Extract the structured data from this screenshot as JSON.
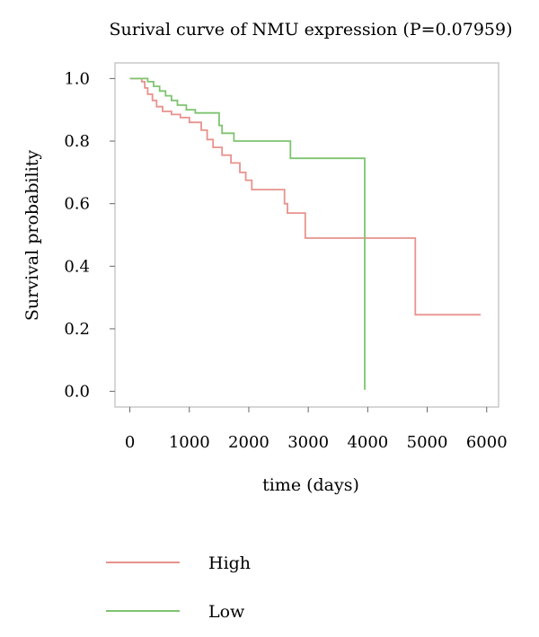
{
  "chart_data": {
    "type": "line",
    "title": "Surival curve of NMU expression (P=0.07959)",
    "xlabel": "time (days)",
    "ylabel": "Survival probability",
    "xlim": [
      -250,
      6200
    ],
    "ylim": [
      -0.05,
      1.05
    ],
    "x_ticks": [
      0,
      1000,
      2000,
      3000,
      4000,
      5000,
      6000
    ],
    "y_ticks": [
      0.0,
      0.2,
      0.4,
      0.6,
      0.8,
      1.0
    ],
    "x_tick_labels": [
      "0",
      "1000",
      "2000",
      "3000",
      "4000",
      "5000",
      "6000"
    ],
    "y_tick_labels": [
      "0.0",
      "0.2",
      "0.4",
      "0.6",
      "0.8",
      "1.0"
    ],
    "step": true,
    "legend_position": "bottom-left",
    "series": [
      {
        "name": "High",
        "color": "#e8928d",
        "points": [
          [
            0,
            1.0
          ],
          [
            200,
            0.99
          ],
          [
            250,
            0.97
          ],
          [
            300,
            0.95
          ],
          [
            380,
            0.93
          ],
          [
            450,
            0.91
          ],
          [
            550,
            0.895
          ],
          [
            700,
            0.885
          ],
          [
            850,
            0.875
          ],
          [
            1000,
            0.86
          ],
          [
            1200,
            0.835
          ],
          [
            1300,
            0.805
          ],
          [
            1400,
            0.78
          ],
          [
            1550,
            0.755
          ],
          [
            1700,
            0.73
          ],
          [
            1850,
            0.7
          ],
          [
            1950,
            0.675
          ],
          [
            2050,
            0.645
          ],
          [
            2600,
            0.6
          ],
          [
            2650,
            0.57
          ],
          [
            2950,
            0.49
          ],
          [
            4800,
            0.245
          ],
          [
            5900,
            0.245
          ]
        ]
      },
      {
        "name": "Low",
        "color": "#7ec46f",
        "points": [
          [
            0,
            1.0
          ],
          [
            300,
            0.99
          ],
          [
            400,
            0.975
          ],
          [
            500,
            0.96
          ],
          [
            600,
            0.945
          ],
          [
            700,
            0.93
          ],
          [
            800,
            0.915
          ],
          [
            950,
            0.9
          ],
          [
            1100,
            0.89
          ],
          [
            1500,
            0.85
          ],
          [
            1550,
            0.825
          ],
          [
            1750,
            0.8
          ],
          [
            2700,
            0.745
          ],
          [
            3950,
            0.005
          ]
        ]
      }
    ]
  }
}
